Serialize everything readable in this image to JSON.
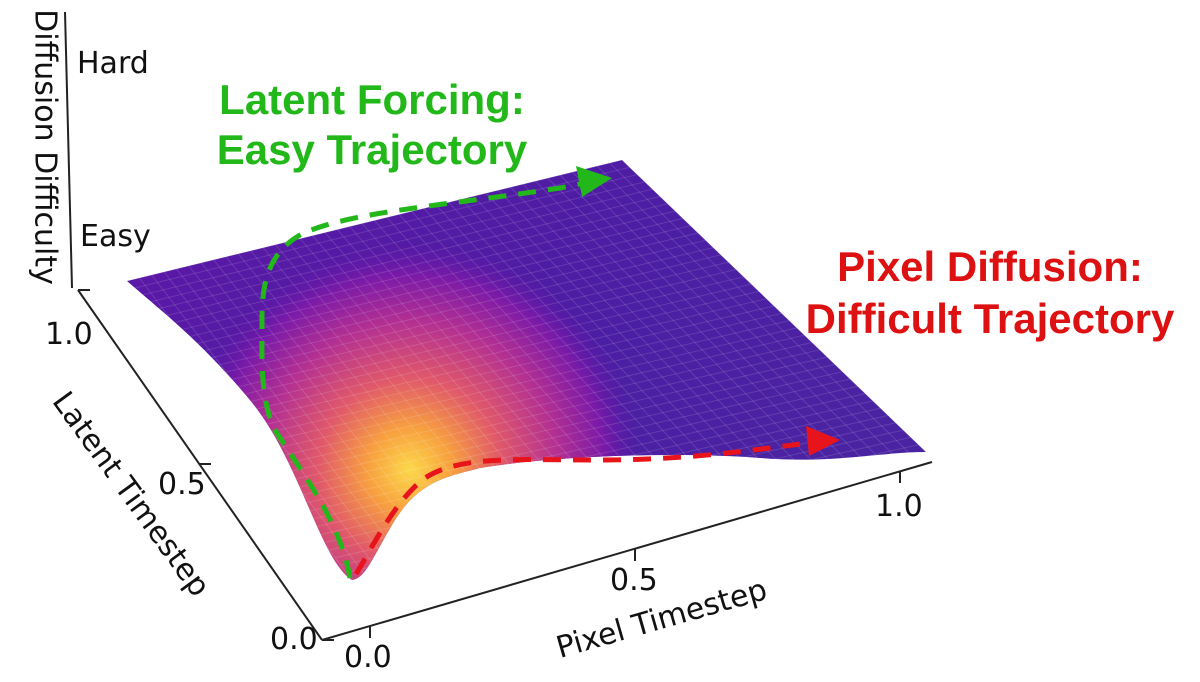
{
  "z_axis": {
    "label": "Diffusion Difficulty",
    "tick_hard": "Hard",
    "tick_easy": "Easy"
  },
  "y_axis": {
    "label": "Latent Timestep",
    "ticks": [
      "0.0",
      "0.5",
      "1.0"
    ]
  },
  "x_axis": {
    "label": "Pixel Timestep",
    "ticks": [
      "0.0",
      "0.5",
      "1.0"
    ]
  },
  "annotations": {
    "latent": {
      "line1": "Latent Forcing:",
      "line2": "Easy Trajectory",
      "color": "#22b81a"
    },
    "pixel": {
      "line1": "Pixel Diffusion:",
      "line2": "Difficult Trajectory",
      "color": "#dd1111"
    }
  },
  "colormap": "plasma"
}
